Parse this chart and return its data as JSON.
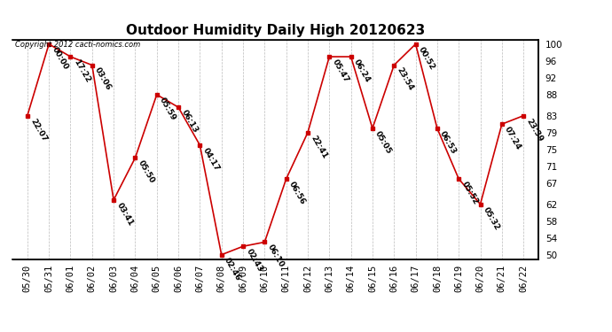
{
  "title": "Outdoor Humidity Daily High 20120623",
  "copyright": "Copyright 2012 cacti-nomics.com",
  "x_labels": [
    "05/30",
    "05/31",
    "06/01",
    "06/02",
    "06/03",
    "06/04",
    "06/05",
    "06/06",
    "06/07",
    "06/08",
    "06/09",
    "06/10",
    "06/11",
    "06/12",
    "06/13",
    "06/14",
    "06/15",
    "06/16",
    "06/17",
    "06/18",
    "06/19",
    "06/20",
    "06/21",
    "06/22"
  ],
  "y_values": [
    83,
    100,
    97,
    95,
    63,
    73,
    88,
    85,
    76,
    50,
    52,
    53,
    68,
    79,
    97,
    97,
    80,
    95,
    100,
    80,
    68,
    62,
    81,
    83
  ],
  "time_labels": [
    "22:07",
    "00:00",
    "17:22",
    "03:06",
    "03:41",
    "05:50",
    "05:59",
    "06:13",
    "04:17",
    "02:46",
    "02:43",
    "06:10",
    "06:56",
    "22:41",
    "05:47",
    "06:24",
    "05:05",
    "23:54",
    "00:52",
    "06:53",
    "05:52",
    "05:32",
    "07:24",
    "23:39"
  ],
  "ylim_min": 49,
  "ylim_max": 101,
  "ytick_right": [
    100,
    96,
    92,
    88,
    83,
    79,
    75,
    71,
    67,
    62,
    58,
    54,
    50
  ],
  "line_color": "#cc0000",
  "marker_color": "#cc0000",
  "bg_color": "#ffffff",
  "grid_color": "#bbbbbb",
  "title_fontsize": 11,
  "label_fontsize": 6.5,
  "tick_fontsize": 7.5,
  "copyright_fontsize": 6
}
